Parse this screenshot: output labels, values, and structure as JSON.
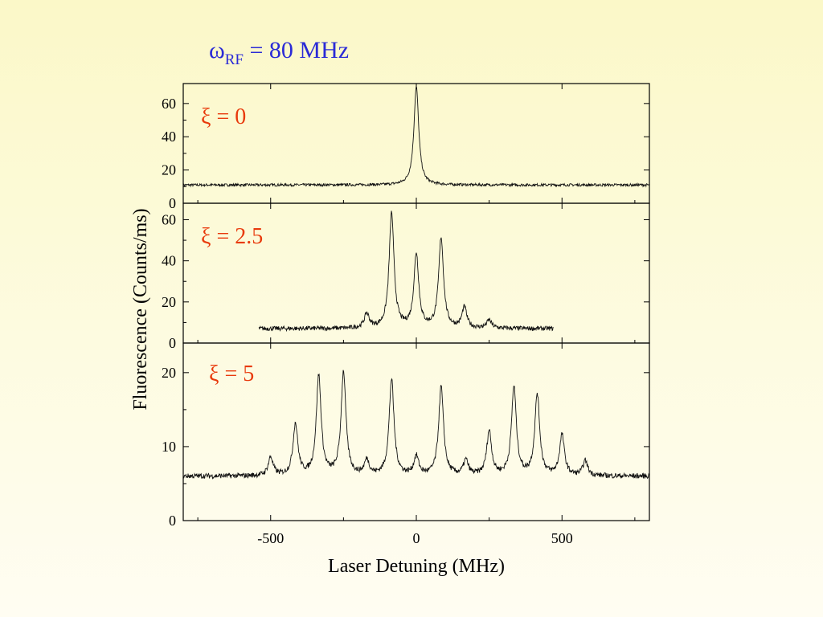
{
  "slide": {
    "title_main": "ω",
    "title_sub": "RF",
    "title_rest": " = 80 MHz",
    "title_color": "#2b2bd6",
    "label_color": "#e83a0c"
  },
  "chart_data": {
    "type": "line",
    "xlabel": "Laser Detuning (MHz)",
    "ylabel": "Fluorescence (Counts/ms)",
    "xlim": [
      -800,
      800
    ],
    "xticks": [
      -500,
      0,
      500
    ],
    "tick_labels_x": [
      "-500",
      "0",
      "500"
    ],
    "grid": false,
    "panels": [
      {
        "label": "ξ = 0",
        "ylim": [
          0,
          72
        ],
        "yticks": [
          0,
          20,
          40,
          60
        ],
        "tick_labels_y": [
          "0",
          "20",
          "40",
          "60"
        ],
        "x_range": [
          -800,
          800
        ],
        "baseline": 11,
        "noise": 0.8,
        "peaks": [
          {
            "x": 0,
            "y": 70
          }
        ]
      },
      {
        "label": "ξ = 2.5",
        "ylim": [
          0,
          68
        ],
        "yticks": [
          0,
          20,
          40,
          60
        ],
        "tick_labels_y": [
          "0",
          "20",
          "40",
          "60"
        ],
        "x_range": [
          -540,
          470
        ],
        "baseline": 7,
        "noise": 1.1,
        "peaks": [
          {
            "x": -170,
            "y": 14
          },
          {
            "x": -85,
            "y": 63
          },
          {
            "x": 0,
            "y": 43
          },
          {
            "x": 85,
            "y": 51
          },
          {
            "x": 165,
            "y": 17
          },
          {
            "x": 250,
            "y": 11
          }
        ]
      },
      {
        "label": "ξ = 5",
        "ylim": [
          0,
          24
        ],
        "yticks": [
          0,
          10,
          20
        ],
        "tick_labels_y": [
          "0",
          "10",
          "20"
        ],
        "x_range": [
          -800,
          800
        ],
        "baseline": 6,
        "noise": 0.35,
        "peaks": [
          {
            "x": -500,
            "y": 8.5
          },
          {
            "x": -415,
            "y": 13
          },
          {
            "x": -335,
            "y": 19.5
          },
          {
            "x": -250,
            "y": 20
          },
          {
            "x": -170,
            "y": 8
          },
          {
            "x": -85,
            "y": 19
          },
          {
            "x": 0,
            "y": 8.5
          },
          {
            "x": 85,
            "y": 18
          },
          {
            "x": 170,
            "y": 8
          },
          {
            "x": 250,
            "y": 12
          },
          {
            "x": 335,
            "y": 18
          },
          {
            "x": 415,
            "y": 17
          },
          {
            "x": 500,
            "y": 11.5
          },
          {
            "x": 580,
            "y": 8
          }
        ]
      }
    ]
  }
}
